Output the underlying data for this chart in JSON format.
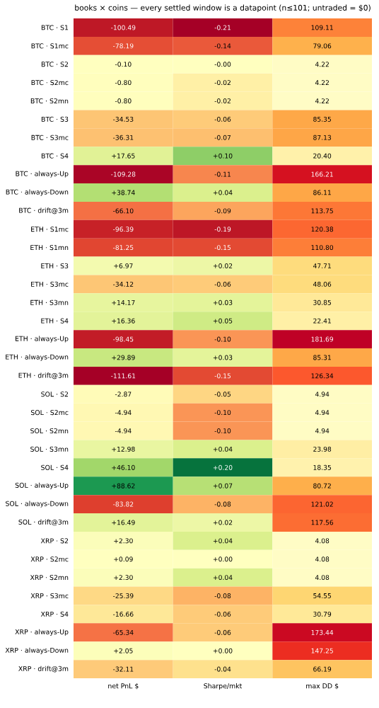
{
  "chart_data": {
    "type": "heatmap",
    "title": "books × coins — every settled window is a datapoint (n≤101; untraded = $0)",
    "categories": [
      "net PnL $",
      "Sharpe/mkt",
      "max DD $"
    ],
    "y_categories": [
      "BTC · S1",
      "BTC · S1mc",
      "BTC · S2",
      "BTC · S2mc",
      "BTC · S2mn",
      "BTC · S3",
      "BTC · S3mc",
      "BTC · S4",
      "BTC · always-Up",
      "BTC · always-Down",
      "BTC · drift@3m",
      "ETH · S1mc",
      "ETH · S1mn",
      "ETH · S3",
      "ETH · S3mc",
      "ETH · S3mn",
      "ETH · S4",
      "ETH · always-Up",
      "ETH · always-Down",
      "ETH · drift@3m",
      "SOL · S2",
      "SOL · S2mc",
      "SOL · S2mn",
      "SOL · S3mn",
      "SOL · S4",
      "SOL · always-Up",
      "SOL · always-Down",
      "SOL · drift@3m",
      "XRP · S2",
      "XRP · S2mc",
      "XRP · S2mn",
      "XRP · S3mc",
      "XRP · S4",
      "XRP · always-Up",
      "XRP · always-Down",
      "XRP · drift@3m"
    ],
    "cells": [
      [
        -100.49,
        -0.21,
        109.11
      ],
      [
        -78.19,
        -0.14,
        79.06
      ],
      [
        -0.1,
        -0.0,
        4.22
      ],
      [
        -0.8,
        -0.02,
        4.22
      ],
      [
        -0.8,
        -0.02,
        4.22
      ],
      [
        -34.53,
        -0.06,
        85.35
      ],
      [
        -36.31,
        -0.07,
        87.13
      ],
      [
        17.65,
        0.1,
        20.4
      ],
      [
        -109.28,
        -0.11,
        166.21
      ],
      [
        38.74,
        0.04,
        86.11
      ],
      [
        -66.1,
        -0.09,
        113.75
      ],
      [
        -96.39,
        -0.19,
        120.38
      ],
      [
        -81.25,
        -0.15,
        110.8
      ],
      [
        6.97,
        0.02,
        47.71
      ],
      [
        -34.12,
        -0.06,
        48.06
      ],
      [
        14.17,
        0.03,
        30.85
      ],
      [
        16.36,
        0.05,
        22.41
      ],
      [
        -98.45,
        -0.1,
        181.69
      ],
      [
        29.89,
        0.03,
        85.31
      ],
      [
        -111.61,
        -0.15,
        126.34
      ],
      [
        -2.87,
        -0.05,
        4.94
      ],
      [
        -4.94,
        -0.1,
        4.94
      ],
      [
        -4.94,
        -0.1,
        4.94
      ],
      [
        12.98,
        0.04,
        23.98
      ],
      [
        46.1,
        0.2,
        18.35
      ],
      [
        88.62,
        0.07,
        80.72
      ],
      [
        -83.82,
        -0.08,
        121.02
      ],
      [
        16.49,
        0.02,
        117.56
      ],
      [
        2.3,
        0.04,
        4.08
      ],
      [
        0.09,
        0.0,
        4.08
      ],
      [
        2.3,
        0.04,
        4.08
      ],
      [
        -25.39,
        -0.08,
        54.55
      ],
      [
        -16.66,
        -0.06,
        30.79
      ],
      [
        -65.34,
        -0.06,
        173.44
      ],
      [
        2.05,
        0.0,
        147.25
      ],
      [
        -32.11,
        -0.04,
        66.19
      ]
    ],
    "cell_labels": [
      [
        "-100.49",
        "-0.21",
        "109.11"
      ],
      [
        "-78.19",
        "-0.14",
        "79.06"
      ],
      [
        "-0.10",
        "-0.00",
        "4.22"
      ],
      [
        "-0.80",
        "-0.02",
        "4.22"
      ],
      [
        "-0.80",
        "-0.02",
        "4.22"
      ],
      [
        "-34.53",
        "-0.06",
        "85.35"
      ],
      [
        "-36.31",
        "-0.07",
        "87.13"
      ],
      [
        "+17.65",
        "+0.10",
        "20.40"
      ],
      [
        "-109.28",
        "-0.11",
        "166.21"
      ],
      [
        "+38.74",
        "+0.04",
        "86.11"
      ],
      [
        "-66.10",
        "-0.09",
        "113.75"
      ],
      [
        "-96.39",
        "-0.19",
        "120.38"
      ],
      [
        "-81.25",
        "-0.15",
        "110.80"
      ],
      [
        "+6.97",
        "+0.02",
        "47.71"
      ],
      [
        "-34.12",
        "-0.06",
        "48.06"
      ],
      [
        "+14.17",
        "+0.03",
        "30.85"
      ],
      [
        "+16.36",
        "+0.05",
        "22.41"
      ],
      [
        "-98.45",
        "-0.10",
        "181.69"
      ],
      [
        "+29.89",
        "+0.03",
        "85.31"
      ],
      [
        "-111.61",
        "-0.15",
        "126.34"
      ],
      [
        "-2.87",
        "-0.05",
        "4.94"
      ],
      [
        "-4.94",
        "-0.10",
        "4.94"
      ],
      [
        "-4.94",
        "-0.10",
        "4.94"
      ],
      [
        "+12.98",
        "+0.04",
        "23.98"
      ],
      [
        "+46.10",
        "+0.20",
        "18.35"
      ],
      [
        "+88.62",
        "+0.07",
        "80.72"
      ],
      [
        "-83.82",
        "-0.08",
        "121.02"
      ],
      [
        "+16.49",
        "+0.02",
        "117.56"
      ],
      [
        "+2.30",
        "+0.04",
        "4.08"
      ],
      [
        "+0.09",
        "+0.00",
        "4.08"
      ],
      [
        "+2.30",
        "+0.04",
        "4.08"
      ],
      [
        "-25.39",
        "-0.08",
        "54.55"
      ],
      [
        "-16.66",
        "-0.06",
        "30.79"
      ],
      [
        "-65.34",
        "-0.06",
        "173.44"
      ],
      [
        "+2.05",
        "+0.00",
        "147.25"
      ],
      [
        "-32.11",
        "-0.04",
        "66.19"
      ]
    ]
  }
}
